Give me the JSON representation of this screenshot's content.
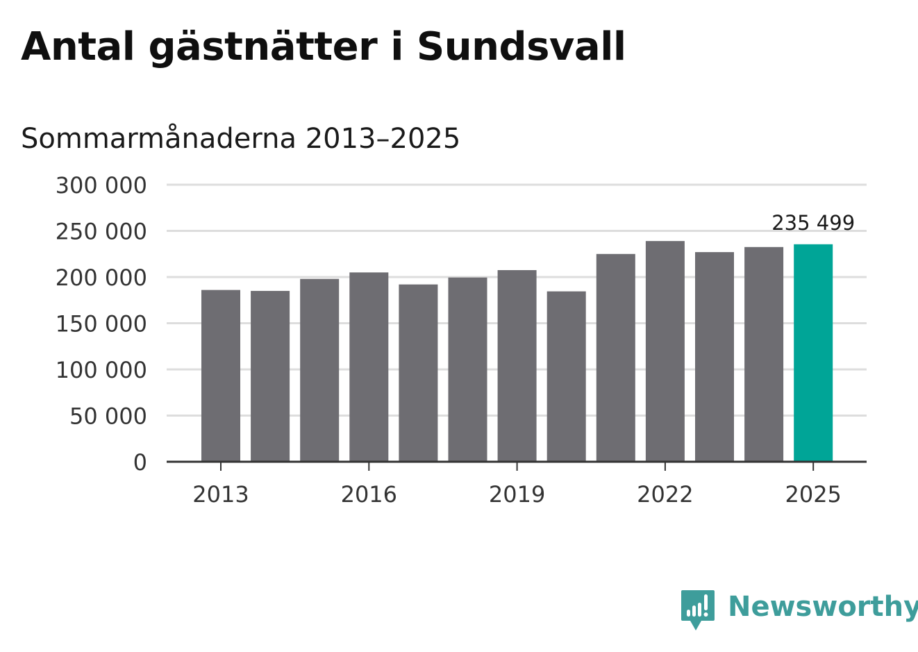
{
  "header": {
    "title": "Antal gästnätter i Sundsvall",
    "subtitle": "Sommarmånaderna 2013–2025"
  },
  "brand": {
    "name": "Newsworthy",
    "icon": "newsworthy-logo-icon",
    "color": "#3e9d9b"
  },
  "chart_data": {
    "type": "bar",
    "title": "Antal gästnätter i Sundsvall",
    "subtitle": "Sommarmånaderna 2013–2025",
    "xlabel": "",
    "ylabel": "",
    "categories": [
      "2013",
      "2014",
      "2015",
      "2016",
      "2017",
      "2018",
      "2019",
      "2020",
      "2021",
      "2022",
      "2023",
      "2024",
      "2025"
    ],
    "values": [
      186000,
      185000,
      198000,
      205000,
      192000,
      199500,
      207500,
      184500,
      225000,
      239000,
      227000,
      232500,
      235499
    ],
    "ylim": [
      0,
      300000
    ],
    "yticks": [
      0,
      50000,
      100000,
      150000,
      200000,
      250000,
      300000
    ],
    "ytick_labels": [
      "0",
      "50 000",
      "100 000",
      "150 000",
      "200 000",
      "250 000",
      "300 000"
    ],
    "xtick_labels": [
      "2013",
      "2016",
      "2019",
      "2022",
      "2025"
    ],
    "highlight_category": "2025",
    "highlight_label": "235 499",
    "grid": true,
    "colors": {
      "bar": "#6e6d72",
      "highlight": "#00a597",
      "grid": "#dddddd",
      "axis": "#333333"
    }
  }
}
